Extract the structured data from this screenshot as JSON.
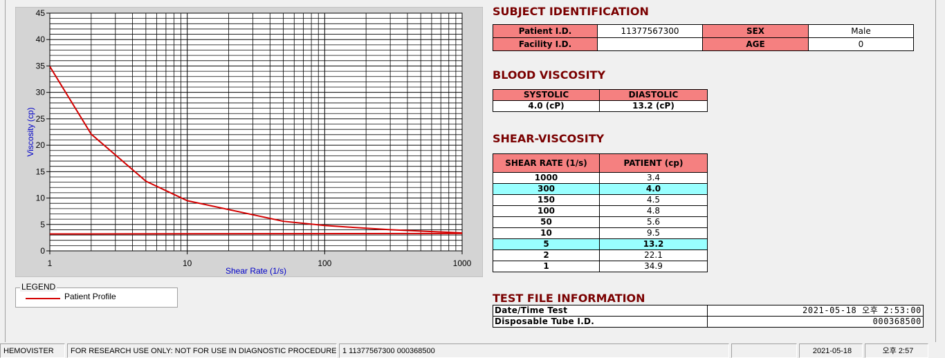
{
  "chart_data": {
    "type": "line",
    "xlabel": "Shear Rate (1/s)",
    "ylabel": "Viscosity (cp)",
    "xlim": [
      1,
      1000
    ],
    "xticks": [
      1,
      10,
      100,
      1000
    ],
    "xscale": "log",
    "ylim": [
      0,
      45
    ],
    "yticks": [
      0,
      5,
      10,
      15,
      20,
      25,
      30,
      35,
      40,
      45
    ],
    "grid": true,
    "minor_grid": true,
    "series": [
      {
        "name": "Patient Profile",
        "color": "#d40000",
        "x": [
          1,
          2,
          5,
          10,
          50,
          100,
          150,
          300,
          1000
        ],
        "values": [
          34.9,
          22.1,
          13.2,
          9.5,
          5.6,
          4.8,
          4.5,
          4.0,
          3.4
        ]
      },
      {
        "color": "#d40000",
        "x": [
          1,
          1000
        ],
        "values": [
          3.2,
          3.3
        ]
      }
    ]
  },
  "legend": {
    "title": "LEGEND"
  },
  "subject_identification": {
    "title": "SUBJECT IDENTIFICATION",
    "rows": [
      [
        "Patient I.D.",
        "11377567300",
        "SEX",
        "Male"
      ],
      [
        "Facility I.D.",
        null,
        "AGE",
        "0"
      ]
    ]
  },
  "blood_viscosity": {
    "title": "BLOOD VISCOSITY",
    "headers": [
      "SYSTOLIC",
      "DIASTOLIC"
    ],
    "values": [
      "4.0 (cP)",
      "13.2 (cP)"
    ]
  },
  "shear_viscosity": {
    "title": "SHEAR-VISCOSITY",
    "headers": [
      "SHEAR RATE (1/s)",
      "PATIENT (cp)"
    ],
    "rows": [
      [
        "1000",
        "3.4"
      ],
      [
        "300",
        "4.0"
      ],
      [
        "150",
        "4.5"
      ],
      [
        "100",
        "4.8"
      ],
      [
        "50",
        "5.6"
      ],
      [
        "10",
        "9.5"
      ],
      [
        "5",
        "13.2"
      ],
      [
        "2",
        "22.1"
      ],
      [
        "1",
        "34.9"
      ]
    ],
    "highlight_rows": [
      1,
      6
    ]
  },
  "test_file": {
    "title": "TEST FILE INFORMATION",
    "rows": [
      [
        "Date/Time Test",
        "2021-05-18  오후 2:53:00"
      ],
      [
        "Disposable Tube I.D.",
        "000368500"
      ]
    ]
  },
  "status_bar": [
    "HEMOVISTER",
    "FOR RESEARCH USE ONLY: NOT FOR USE IN DIAGNOSTIC PROCEDURES",
    "1  11377567300  000368500",
    null,
    "2021-05-18",
    "오후 2:57"
  ]
}
